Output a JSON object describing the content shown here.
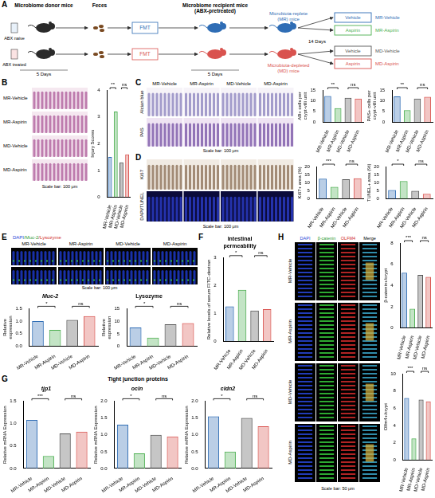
{
  "figure": {
    "panel_letters": [
      "A",
      "B",
      "C",
      "D",
      "E",
      "F",
      "G",
      "H"
    ],
    "groups": [
      "MR-Vehicle",
      "MR-Aspirin",
      "MD-Vehicle",
      "MD-Aspirin"
    ],
    "group_colors": [
      "#2f6db5",
      "#4caf50",
      "#555555",
      "#d9534f"
    ],
    "schematic": {
      "donor": "Microbiome donor mice",
      "feces": "Feces",
      "recipient": "Microbiome recipient mice (ABX-pretreated)",
      "bottles": [
        "ABX naive",
        "ABX treated"
      ],
      "fmt": [
        "FMT",
        "FMT"
      ],
      "days": [
        "5 Days",
        "5 Days",
        "14 Days"
      ],
      "mr": "Microbiota-replete (MR) mice",
      "md": "Microbiota-depleted (MD) mice",
      "treatments": [
        "Vehicle",
        "Aspirin",
        "Vehicle",
        "Aspirin"
      ]
    },
    "B": {
      "scale_bar": "Scale bar: 100 μm"
    },
    "C": {
      "rows": [
        "Alcian blue",
        "PAS"
      ],
      "scale_bar": "Scale bar: 100 μm"
    },
    "D": {
      "rows": [
        "Ki67",
        "DAPI/TUNEL"
      ],
      "scale_bar": "Scale bar: 100 μm"
    },
    "E": {
      "stain": "DAPI/Muc-2/Lysozyme",
      "scale_bar": "Scale bar: 100 μm"
    },
    "G": {
      "title": "Tight junction proteins"
    },
    "H": {
      "columns": [
        "DAPI",
        "β-catenin",
        "OLFM4",
        "Merge"
      ],
      "scale_bar": "Scale bar: 50 μm"
    }
  },
  "chart_data": [
    {
      "type": "bar",
      "y_label": "Injury Scores",
      "categories": [
        "MR-Vehicle",
        "MR-Aspirin",
        "MD-Vehicle",
        "MD-Aspirin"
      ],
      "values": [
        1.5,
        3.2,
        1.3,
        1.6
      ],
      "colors": [
        "#2f6db5",
        "#4caf50",
        "#555555",
        "#d9534f"
      ],
      "ylim": [
        0,
        4
      ],
      "yticks": [
        0,
        1,
        2,
        3,
        4
      ],
      "annotations": [
        {
          "text": "**",
          "between": [
            "MR-Vehicle",
            "MR-Aspirin"
          ]
        },
        {
          "text": "ns",
          "between": [
            "MD-Vehicle",
            "MD-Aspirin"
          ]
        }
      ]
    },
    {
      "type": "bar",
      "y_label": "AB+ cells per crypt-villi unit",
      "categories": [
        "MR-Vehicle",
        "MR-Aspirin",
        "MD-Vehicle",
        "MD-Aspirin"
      ],
      "values": [
        12.2,
        6.5,
        11.3,
        11.0
      ],
      "colors": [
        "#2f6db5",
        "#4caf50",
        "#555555",
        "#d9534f"
      ],
      "ylim": [
        0,
        15
      ],
      "yticks": [
        0,
        5,
        10,
        15
      ],
      "annotations": [
        {
          "text": "**",
          "between": [
            "MR-Vehicle",
            "MR-Aspirin"
          ]
        },
        {
          "text": "ns",
          "between": [
            "MD-Vehicle",
            "MD-Aspirin"
          ]
        }
      ]
    },
    {
      "type": "bar",
      "y_label": "PAS+ cells per crypt-villi unit",
      "categories": [
        "MR-Vehicle",
        "MR-Aspirin",
        "MD-Vehicle",
        "MD-Aspirin"
      ],
      "values": [
        12.0,
        5.5,
        11.0,
        11.8
      ],
      "colors": [
        "#2f6db5",
        "#4caf50",
        "#555555",
        "#d9534f"
      ],
      "ylim": [
        0,
        15
      ],
      "yticks": [
        0,
        5,
        10,
        15
      ],
      "annotations": [
        {
          "text": "**",
          "between": [
            "MR-Vehicle",
            "MR-Aspirin"
          ]
        },
        {
          "text": "ns",
          "between": [
            "MD-Vehicle",
            "MD-Aspirin"
          ]
        }
      ]
    },
    {
      "type": "bar",
      "y_label": "Ki67+ area (%)",
      "categories": [
        "MR-Vehicle",
        "MR-Aspirin",
        "MD-Vehicle",
        "MD-Aspirin"
      ],
      "values": [
        12.5,
        7.5,
        12.2,
        12.8
      ],
      "colors": [
        "#2f6db5",
        "#4caf50",
        "#555555",
        "#d9534f"
      ],
      "ylim": [
        0,
        20
      ],
      "yticks": [
        0,
        5,
        10,
        15,
        20
      ],
      "annotations": [
        {
          "text": "***",
          "between": [
            "MR-Vehicle",
            "MR-Aspirin"
          ]
        },
        {
          "text": "ns",
          "between": [
            "MD-Vehicle",
            "MD-Aspirin"
          ]
        }
      ]
    },
    {
      "type": "bar",
      "y_label": "TUNEL+ area (%)",
      "categories": [
        "MR-Vehicle",
        "MR-Aspirin",
        "MD-Vehicle",
        "MD-Aspirin"
      ],
      "values": [
        5.5,
        11.0,
        5.0,
        3.2
      ],
      "colors": [
        "#2f6db5",
        "#4caf50",
        "#555555",
        "#d9534f"
      ],
      "ylim": [
        0,
        20
      ],
      "yticks": [
        0,
        5,
        10,
        15,
        20
      ],
      "annotations": [
        {
          "text": "*",
          "between": [
            "MR-Vehicle",
            "MR-Aspirin"
          ]
        },
        {
          "text": "ns",
          "between": [
            "MD-Vehicle",
            "MD-Aspirin"
          ]
        }
      ]
    },
    {
      "type": "bar",
      "title": "Muc-2",
      "y_label": "Relative expression",
      "categories": [
        "MR-Vehicle",
        "MR-Aspirin",
        "MD-Vehicle",
        "MD-Aspirin"
      ],
      "values": [
        1.0,
        0.65,
        1.05,
        1.2
      ],
      "colors": [
        "#2f6db5",
        "#4caf50",
        "#555555",
        "#d9534f"
      ],
      "ylim": [
        0,
        1.5
      ],
      "yticks": [
        {
          "value": 0,
          "label": "0.0"
        },
        {
          "value": 0.5,
          "label": "0.5"
        },
        {
          "value": 1,
          "label": "1.0"
        },
        {
          "value": 1.5,
          "label": "1.5"
        }
      ],
      "annotations": [
        {
          "text": "*",
          "between": [
            "MR-Vehicle",
            "MR-Aspirin"
          ]
        },
        {
          "text": "ns",
          "between": [
            "MD-Vehicle",
            "MD-Aspirin"
          ]
        }
      ]
    },
    {
      "type": "bar",
      "title": "Lysozyme",
      "y_label": "Relative expression",
      "categories": [
        "MR-Vehicle",
        "MR-Aspirin",
        "MD-Vehicle",
        "MD-Aspirin"
      ],
      "values": [
        7.5,
        3.5,
        8.8,
        9.3
      ],
      "colors": [
        "#2f6db5",
        "#4caf50",
        "#555555",
        "#d9534f"
      ],
      "ylim": [
        0,
        15
      ],
      "yticks": [
        0,
        5,
        10,
        15
      ],
      "annotations": [
        {
          "text": "*",
          "between": [
            "MR-Vehicle",
            "MR-Aspirin"
          ]
        },
        {
          "text": "ns",
          "between": [
            "MD-Vehicle",
            "MD-Aspirin"
          ]
        }
      ]
    },
    {
      "type": "bar",
      "title": "Intestinal permeability",
      "y_label": "Relative levels of serum FITC-dextran",
      "categories": [
        "MR-Vehicle",
        "MR-Aspirin",
        "MD-Vehicle",
        "MD-Aspirin"
      ],
      "values": [
        1.25,
        1.85,
        1.1,
        1.15
      ],
      "colors": [
        "#2f6db5",
        "#4caf50",
        "#555555",
        "#d9534f"
      ],
      "ylim": [
        0,
        3
      ],
      "yticks": [
        0,
        1,
        2,
        3
      ],
      "annotations": [
        {
          "text": "*",
          "between": [
            "MR-Vehicle",
            "MR-Aspirin"
          ]
        },
        {
          "text": "ns",
          "between": [
            "MD-Vehicle",
            "MD-Aspirin"
          ]
        }
      ]
    },
    {
      "type": "bar",
      "title": "tjp1",
      "y_label": "Relative mRNA Expression",
      "categories": [
        "MR-Vehicle",
        "MR-Aspirin",
        "MD-Vehicle",
        "MD-Aspirin"
      ],
      "values": [
        1.08,
        0.28,
        0.78,
        0.82
      ],
      "colors": [
        "#2f6db5",
        "#4caf50",
        "#555555",
        "#d9534f"
      ],
      "ylim": [
        0,
        1.5
      ],
      "yticks": [
        {
          "value": 0,
          "label": "0.0"
        },
        {
          "value": 0.5,
          "label": "0.5"
        },
        {
          "value": 1,
          "label": "1.0"
        },
        {
          "value": 1.5,
          "label": "1.5"
        }
      ],
      "annotations": [
        {
          "text": "***",
          "between": [
            "MR-Vehicle",
            "MR-Aspirin"
          ]
        },
        {
          "text": "ns",
          "between": [
            "MD-Vehicle",
            "MD-Aspirin"
          ]
        }
      ]
    },
    {
      "type": "bar",
      "title": "ocln",
      "y_label": "Relative mRNA Expression",
      "categories": [
        "MR-Vehicle",
        "MR-Aspirin",
        "MD-Vehicle",
        "MD-Aspirin"
      ],
      "values": [
        1.3,
        0.45,
        1.0,
        0.95
      ],
      "colors": [
        "#2f6db5",
        "#4caf50",
        "#555555",
        "#d9534f"
      ],
      "ylim": [
        0,
        2
      ],
      "yticks": [
        {
          "value": 0,
          "label": "0.0"
        },
        {
          "value": 0.5,
          "label": "0.5"
        },
        {
          "value": 1,
          "label": "1.0"
        },
        {
          "value": 1.5,
          "label": "1.5"
        },
        {
          "value": 2,
          "label": "2.0"
        }
      ],
      "annotations": [
        {
          "text": "*",
          "between": [
            "MR-Vehicle",
            "MR-Aspirin"
          ]
        },
        {
          "text": "ns",
          "between": [
            "MD-Vehicle",
            "MD-Aspirin"
          ]
        }
      ]
    },
    {
      "type": "bar",
      "title": "cldn2",
      "y_label": "Relative mRNA Expression",
      "categories": [
        "MR-Vehicle",
        "MR-Aspirin",
        "MD-Vehicle",
        "MD-Aspirin"
      ],
      "values": [
        1.55,
        0.5,
        1.5,
        1.25
      ],
      "colors": [
        "#2f6db5",
        "#4caf50",
        "#555555",
        "#d9534f"
      ],
      "ylim": [
        0,
        2
      ],
      "yticks": [
        {
          "value": 0,
          "label": "0.0"
        },
        {
          "value": 0.5,
          "label": "0.5"
        },
        {
          "value": 1,
          "label": "1.0"
        },
        {
          "value": 1.5,
          "label": "1.5"
        },
        {
          "value": 2,
          "label": "2.0"
        }
      ],
      "annotations": [
        {
          "text": "*",
          "between": [
            "MR-Vehicle",
            "MR-Aspirin"
          ]
        },
        {
          "text": "ns",
          "between": [
            "MD-Vehicle",
            "MD-Aspirin"
          ]
        }
      ]
    },
    {
      "type": "bar",
      "y_label": "β-catenin+/crypt",
      "categories": [
        "MR-Vehicle",
        "MR-Aspirin",
        "MD-Vehicle",
        "MD-Aspirin"
      ],
      "values": [
        5.2,
        1.8,
        5.0,
        4.8
      ],
      "colors": [
        "#2f6db5",
        "#4caf50",
        "#555555",
        "#d9534f"
      ],
      "ylim": [
        0,
        8
      ],
      "yticks": [
        0,
        2,
        4,
        6,
        8
      ],
      "annotations": [
        {
          "text": "***",
          "between": [
            "MR-Vehicle",
            "MR-Aspirin"
          ]
        },
        {
          "text": "ns",
          "between": [
            "MD-Vehicle",
            "MD-Aspirin"
          ]
        }
      ]
    },
    {
      "type": "bar",
      "y_label": "Olfm4+/crypt",
      "categories": [
        "MR-Vehicle",
        "MR-Aspirin",
        "MD-Vehicle",
        "MD-Aspirin"
      ],
      "values": [
        7.2,
        2.5,
        7.0,
        6.8
      ],
      "colors": [
        "#2f6db5",
        "#4caf50",
        "#555555",
        "#d9534f"
      ],
      "ylim": [
        0,
        10
      ],
      "yticks": [
        0,
        2,
        4,
        6,
        8,
        10
      ],
      "annotations": [
        {
          "text": "***",
          "between": [
            "MR-Vehicle",
            "MR-Aspirin"
          ]
        },
        {
          "text": "ns",
          "between": [
            "MD-Vehicle",
            "MD-Aspirin"
          ]
        }
      ]
    }
  ]
}
